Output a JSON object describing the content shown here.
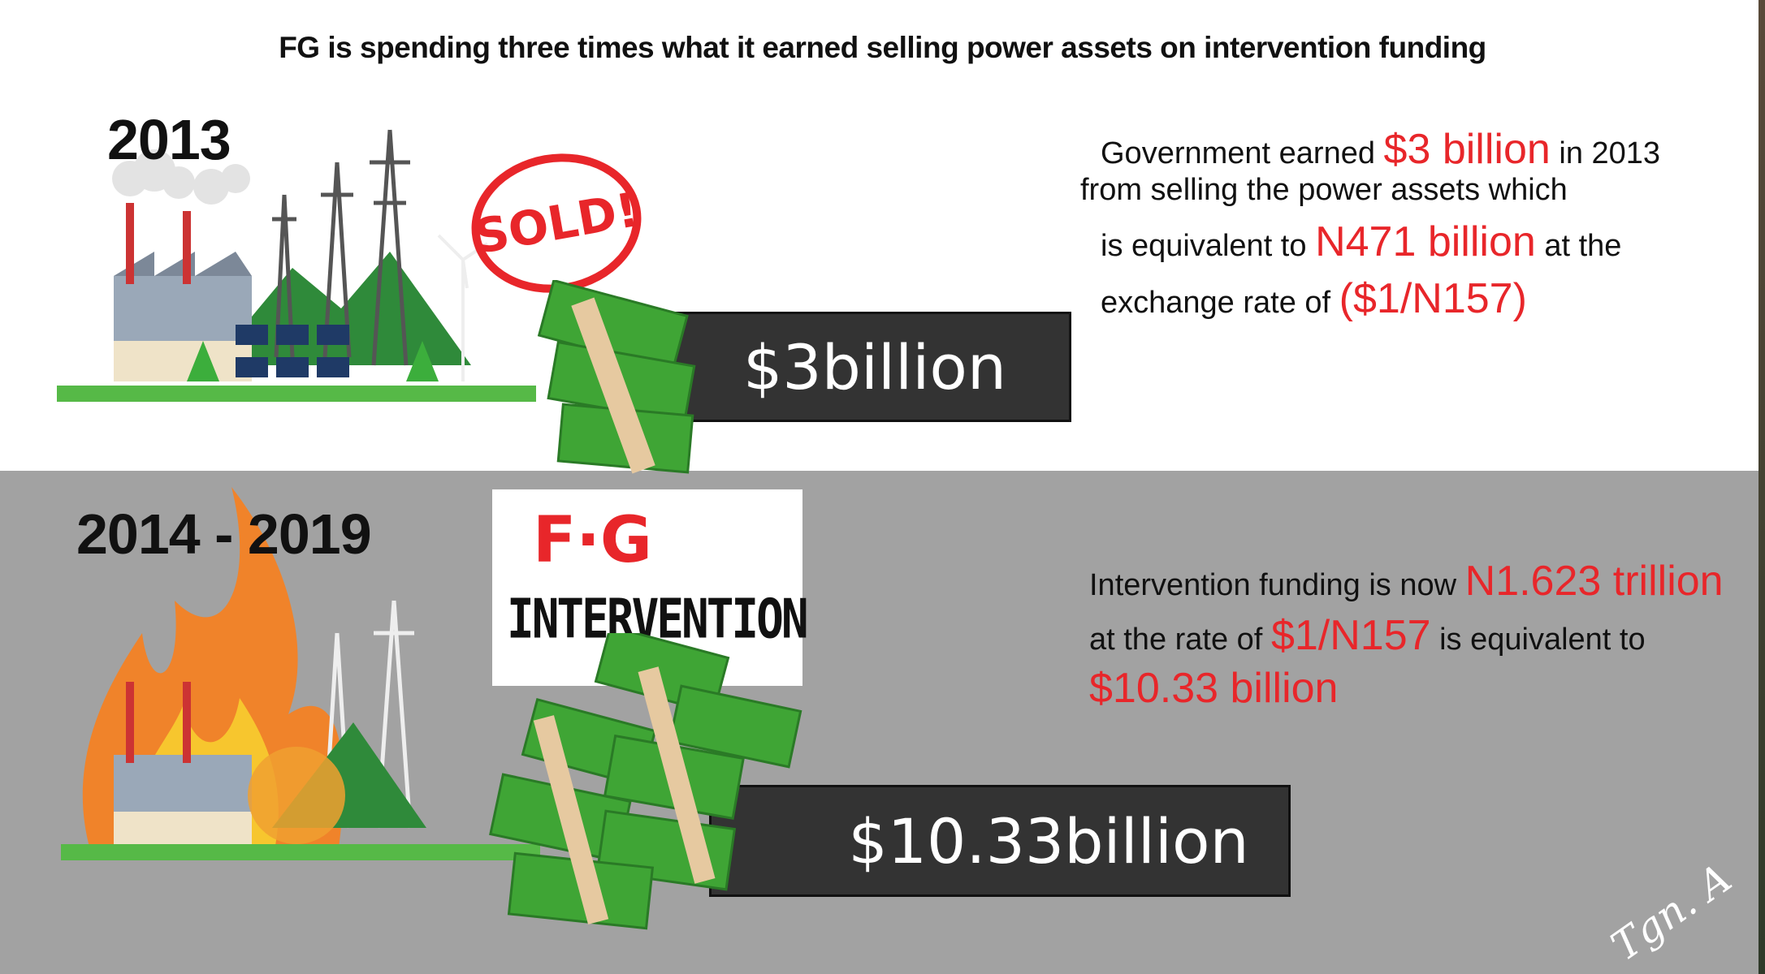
{
  "title": "FG is spending three times what it earned selling power assets on intervention funding",
  "section_2013": {
    "year": "2013",
    "stamp": "SOLD!",
    "amount_box": "$3billion",
    "text": {
      "l1_a": "Government earned",
      "l1_red": "$3 billion",
      "l1_b": "in 2013",
      "l2": "from selling the power assets which",
      "l3_a": "is equivalent to",
      "l3_red": "N471 billion",
      "l3_b": "at the",
      "l4_a": "exchange rate of",
      "l4_red": "($1/N157)"
    }
  },
  "section_2014_2019": {
    "year": "2014 - 2019",
    "sign_line1": "F·G",
    "sign_line2": "INTERVENTION",
    "amount_box": "$10.33billion",
    "text": {
      "l1_a": "Intervention funding is now",
      "l1_red": "N1.623 trillion",
      "l2_a": "at the rate of",
      "l2_red": "$1/N157",
      "l2_b": "is equivalent to",
      "l3_red": "$10.33 billion"
    }
  },
  "signature": "Tgn. A",
  "colors": {
    "accent_red": "#e8262a",
    "box": "#333333",
    "gray_bg": "#a2a2a2",
    "money_green": "#3fa535"
  }
}
